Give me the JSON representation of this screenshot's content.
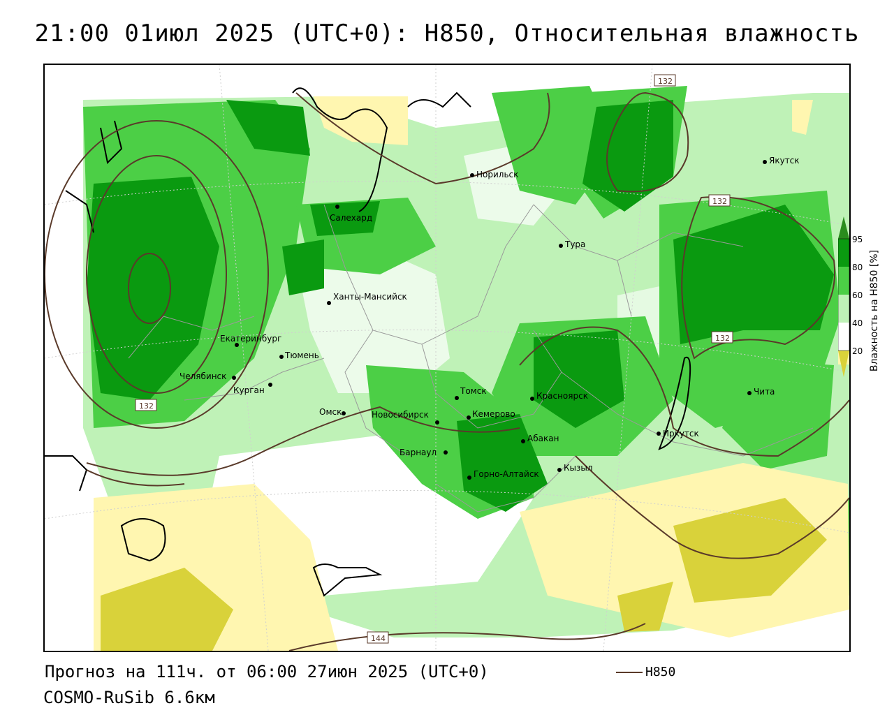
{
  "header": {
    "title": "21:00 01июл 2025 (UTC+0): H850, Относительная влажность"
  },
  "map": {
    "cities": [
      {
        "name": "Салехард"
      },
      {
        "name": "Норильск"
      },
      {
        "name": "Якутск"
      },
      {
        "name": "Тура"
      },
      {
        "name": "Ханты-Мансийск"
      },
      {
        "name": "Екатеринбург"
      },
      {
        "name": "Тюмень"
      },
      {
        "name": "Челябинск"
      },
      {
        "name": "Курган"
      },
      {
        "name": "Омск"
      },
      {
        "name": "Новосибирск"
      },
      {
        "name": "Томск"
      },
      {
        "name": "Кемерово"
      },
      {
        "name": "Красноярск"
      },
      {
        "name": "Абакан"
      },
      {
        "name": "Барнаул"
      },
      {
        "name": "Горно-Алтайск"
      },
      {
        "name": "Кызыл"
      },
      {
        "name": "Иркутск"
      },
      {
        "name": "Чита"
      }
    ],
    "contour_labels": [
      "132",
      "132",
      "132",
      "132",
      "144"
    ]
  },
  "colorbar": {
    "title": "Влажность на H850 [%]",
    "ticks": [
      "95",
      "80",
      "60",
      "40",
      "20"
    ],
    "colors": {
      "above95": "#2a8c1e",
      "c95": "#0a9a10",
      "c80": "#4ccf46",
      "c60": "#bff2b7",
      "c40": "#ffffff",
      "c20": "#fff6b0",
      "below20": "#d9d23a"
    }
  },
  "footer": {
    "forecast": "Прогноз на 111ч. от 06:00 27июн 2025 (UTC+0)",
    "model": "COSMO-RuSib 6.6км",
    "legend_label": "H850"
  },
  "colors": {
    "contour": "#5a3a2a",
    "dark_green": "#0a9a10",
    "mid_green": "#4ccf46",
    "light_green": "#bff2b7",
    "light_yellow": "#fff6b0",
    "dark_yellow": "#d9d23a"
  }
}
